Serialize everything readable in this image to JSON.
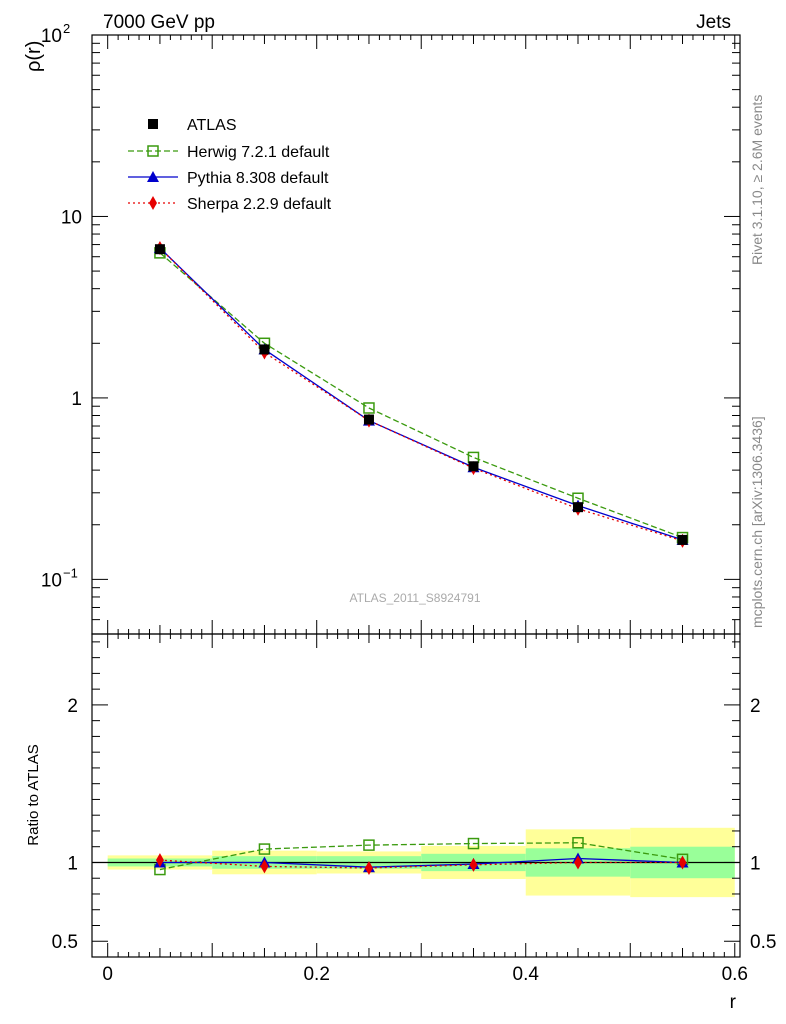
{
  "header": {
    "left": "7000 GeV pp",
    "right": "Jets"
  },
  "side_labels": {
    "rivet": "Rivet 3.1.10, ≥ 2.6M events",
    "source": "mcplots.cern.ch [arXiv:1306.3436]"
  },
  "analysis_label": "ATLAS_2011_S8924791",
  "chart_data": [
    {
      "type": "line",
      "panel": "main",
      "ylabel": "ρ(r)",
      "yscale": "log",
      "ylim": [
        0.05,
        100
      ],
      "xlim": [
        -0.015,
        0.605
      ],
      "y_tick_labels": [
        {
          "value": 0.1,
          "base": "10",
          "exp": "−1"
        },
        {
          "value": 1,
          "text": "1"
        },
        {
          "value": 10,
          "text": "10"
        },
        {
          "value": 100,
          "base": "10",
          "exp": "2"
        }
      ],
      "legend_position": "top-left",
      "x": [
        0.05,
        0.15,
        0.25,
        0.35,
        0.45,
        0.55
      ],
      "series": [
        {
          "name": "ATLAS",
          "color": "#000000",
          "marker": "square-filled",
          "values": [
            6.6,
            1.85,
            0.76,
            0.42,
            0.25,
            0.165
          ]
        },
        {
          "name": "Herwig 7.2.1 default",
          "color": "#3a9a0e",
          "marker": "square-open",
          "dash": "dashed",
          "values": [
            6.3,
            2.0,
            0.88,
            0.47,
            0.28,
            0.17
          ]
        },
        {
          "name": "Pythia 8.308 default",
          "color": "#0000cc",
          "marker": "triangle",
          "dash": "solid",
          "values": [
            6.7,
            1.85,
            0.75,
            0.415,
            0.255,
            0.165
          ]
        },
        {
          "name": "Sherpa 2.2.9 default",
          "color": "#e60000",
          "marker": "diamond",
          "dash": "dotted",
          "values": [
            6.7,
            1.78,
            0.75,
            0.41,
            0.245,
            0.163
          ]
        }
      ]
    },
    {
      "type": "line",
      "panel": "ratio",
      "xlabel": "r",
      "ylabel": "Ratio to ATLAS",
      "ylim": [
        0.4,
        2.45
      ],
      "xlim": [
        -0.015,
        0.605
      ],
      "x_ticks": [
        0,
        0.2,
        0.4,
        0.6
      ],
      "x_tick_labels": [
        "0",
        "0.2",
        "0.4",
        "0.6"
      ],
      "y_ticks": [
        0.5,
        1,
        2
      ],
      "y_tick_labels": [
        "0.5",
        "1",
        "2"
      ],
      "reference_line": 1,
      "bands": [
        {
          "xlo": 0.0,
          "xhi": 0.1,
          "inner": [
            0.975,
            1.025
          ],
          "outer": [
            0.955,
            1.045
          ]
        },
        {
          "xlo": 0.1,
          "xhi": 0.2,
          "inner": [
            0.96,
            1.04
          ],
          "outer": [
            0.925,
            1.075
          ]
        },
        {
          "xlo": 0.2,
          "xhi": 0.3,
          "inner": [
            0.96,
            1.04
          ],
          "outer": [
            0.93,
            1.07
          ]
        },
        {
          "xlo": 0.3,
          "xhi": 0.4,
          "inner": [
            0.945,
            1.055
          ],
          "outer": [
            0.895,
            1.105
          ]
        },
        {
          "xlo": 0.4,
          "xhi": 0.5,
          "inner": [
            0.91,
            1.09
          ],
          "outer": [
            0.79,
            1.21
          ]
        },
        {
          "xlo": 0.5,
          "xhi": 0.6,
          "inner": [
            0.9,
            1.1
          ],
          "outer": [
            0.78,
            1.22
          ]
        }
      ],
      "band_colors": {
        "inner": "#99ff99",
        "outer": "#ffff99"
      },
      "x": [
        0.05,
        0.15,
        0.25,
        0.35,
        0.45,
        0.55
      ],
      "series": [
        {
          "name": "Herwig 7.2.1 default",
          "color": "#3a9a0e",
          "marker": "square-open",
          "dash": "dashed",
          "values": [
            0.955,
            1.085,
            1.11,
            1.12,
            1.125,
            1.02
          ]
        },
        {
          "name": "Pythia 8.308 default",
          "color": "#0000cc",
          "marker": "triangle",
          "dash": "solid",
          "values": [
            1.0,
            1.0,
            0.97,
            0.99,
            1.025,
            1.0
          ]
        },
        {
          "name": "Sherpa 2.2.9 default",
          "color": "#e60000",
          "marker": "diamond",
          "dash": "dotted",
          "values": [
            1.015,
            0.975,
            0.965,
            0.985,
            1.0,
            1.0
          ]
        }
      ]
    }
  ]
}
